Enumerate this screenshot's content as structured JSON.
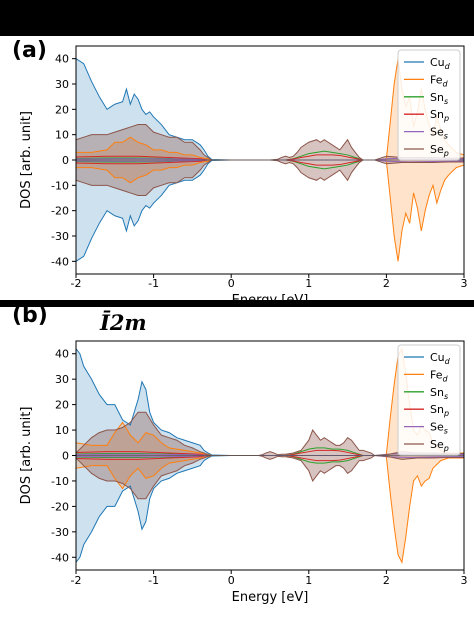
{
  "space_group_label": "Ī2m",
  "chart_data": [
    {
      "panel": "(a)",
      "type": "area",
      "xlabel": "Energy [eV]",
      "ylabel": "DOS [arb. unit]",
      "xlim": [
        -2,
        3
      ],
      "ylim": [
        -45,
        45
      ],
      "xticks": [
        "-2",
        "-1",
        "0",
        "1",
        "2",
        "3"
      ],
      "yticks": [
        "-40",
        "-30",
        "-20",
        "-10",
        "0",
        "10",
        "20",
        "30",
        "40"
      ],
      "legend_position": "top-right",
      "series": [
        {
          "name": "Cu",
          "sub": "d",
          "color": "#1f77b4",
          "x": [
            -2.0,
            -1.9,
            -1.8,
            -1.7,
            -1.6,
            -1.5,
            -1.4,
            -1.35,
            -1.3,
            -1.25,
            -1.2,
            -1.15,
            -1.1,
            -1.05,
            -1.0,
            -0.9,
            -0.8,
            -0.7,
            -0.6,
            -0.5,
            -0.4,
            -0.35,
            -0.3,
            -0.25,
            0.0
          ],
          "y": [
            40,
            38,
            31,
            25,
            20,
            22,
            23,
            28,
            22,
            26,
            24,
            20,
            18,
            19,
            17,
            14,
            10,
            9,
            8,
            8,
            6,
            4,
            1.5,
            0.2,
            0
          ]
        },
        {
          "name": "Fe",
          "sub": "d",
          "color": "#ff7f0e",
          "x": [
            -2.0,
            -1.8,
            -1.6,
            -1.5,
            -1.4,
            -1.3,
            -1.2,
            -1.1,
            -1.0,
            -0.9,
            -0.8,
            -0.7,
            -0.6,
            -0.5,
            -0.4,
            -0.3,
            -0.25,
            1.9,
            2.0,
            2.05,
            2.1,
            2.15,
            2.2,
            2.25,
            2.3,
            2.35,
            2.4,
            2.45,
            2.5,
            2.55,
            2.6,
            2.65,
            2.7,
            2.75,
            2.8,
            2.9,
            3.0
          ],
          "y": [
            3,
            3,
            4,
            7,
            7,
            9,
            7,
            6,
            4,
            4,
            3,
            3,
            2,
            2,
            1,
            0.5,
            0,
            0,
            0.5,
            15,
            30,
            40,
            28,
            21,
            25,
            13,
            19,
            28,
            20,
            14,
            10,
            17,
            12,
            8,
            6,
            3,
            2
          ]
        },
        {
          "name": "Sn",
          "sub": "s",
          "color": "#2ca02c",
          "x": [
            -2.0,
            -1.6,
            -1.2,
            -0.8,
            -0.4,
            -0.3,
            0.7,
            0.8,
            0.9,
            1.0,
            1.1,
            1.2,
            1.3,
            1.4,
            1.5,
            1.6,
            1.7
          ],
          "y": [
            0.6,
            0.8,
            0.8,
            0.6,
            0.3,
            0,
            0,
            0.5,
            1.5,
            2.5,
            3,
            3.5,
            3,
            2.5,
            2,
            1,
            0
          ]
        },
        {
          "name": "Sn",
          "sub": "p",
          "color": "#d62728",
          "x": [
            -2.0,
            -1.6,
            -1.2,
            -0.8,
            -0.4,
            -0.3,
            0.7,
            0.8,
            0.9,
            1.0,
            1.1,
            1.2,
            1.3,
            1.4,
            1.5,
            1.6,
            1.7
          ],
          "y": [
            1.2,
            1.5,
            1.5,
            1.0,
            0.5,
            0,
            0,
            0.4,
            1.0,
            1.5,
            2.0,
            2.0,
            2.0,
            1.8,
            1.2,
            0.6,
            0
          ]
        },
        {
          "name": "Se",
          "sub": "s",
          "color": "#9467bd",
          "x": [
            -2.0,
            -1.5,
            -1.0,
            -0.5,
            -0.3,
            1.85,
            2.0,
            2.3,
            2.6,
            3.0
          ],
          "y": [
            0.4,
            0.5,
            0.5,
            0.3,
            0,
            0,
            0.5,
            0.8,
            0.6,
            0.4
          ]
        },
        {
          "name": "Se",
          "sub": "p",
          "color": "#8c564b",
          "x": [
            -2.0,
            -1.9,
            -1.8,
            -1.7,
            -1.6,
            -1.5,
            -1.4,
            -1.3,
            -1.2,
            -1.1,
            -1.0,
            -0.9,
            -0.8,
            -0.7,
            -0.6,
            -0.5,
            -0.4,
            -0.35,
            -0.3,
            -0.25,
            0.5,
            0.6,
            0.65,
            0.7,
            0.75,
            0.8,
            0.85,
            0.9,
            1.0,
            1.1,
            1.15,
            1.2,
            1.25,
            1.3,
            1.35,
            1.4,
            1.45,
            1.5,
            1.55,
            1.6,
            1.65,
            1.7,
            1.85,
            1.9,
            2.0,
            2.2,
            2.4,
            2.6,
            2.8,
            3.0
          ],
          "y": [
            8,
            9,
            10,
            10,
            10,
            11,
            12,
            13,
            14,
            14,
            11,
            10,
            9,
            9,
            7,
            7,
            4,
            2,
            1,
            0,
            0,
            0.3,
            1,
            1.5,
            1,
            1.5,
            3,
            5,
            7,
            8,
            7,
            8,
            7,
            6,
            5,
            4,
            6,
            8,
            5,
            3,
            1,
            0,
            0,
            0.5,
            1.5,
            1,
            1,
            1,
            0.8,
            0.8
          ]
        }
      ]
    },
    {
      "panel": "(b)",
      "type": "area",
      "xlabel": "Energy [eV]",
      "ylabel": "DOS [arb. unit]",
      "xlim": [
        -2,
        3
      ],
      "ylim": [
        -45,
        45
      ],
      "xticks": [
        "-2",
        "-1",
        "0",
        "1",
        "2",
        "3"
      ],
      "yticks": [
        "-40",
        "-30",
        "-20",
        "-10",
        "0",
        "10",
        "20",
        "30",
        "40"
      ],
      "legend_position": "top-right",
      "series": [
        {
          "name": "Cu",
          "sub": "d",
          "color": "#1f77b4",
          "x": [
            -2.0,
            -1.95,
            -1.9,
            -1.8,
            -1.7,
            -1.6,
            -1.5,
            -1.4,
            -1.3,
            -1.2,
            -1.15,
            -1.1,
            -1.05,
            -1.0,
            -0.9,
            -0.8,
            -0.7,
            -0.6,
            -0.5,
            -0.4,
            -0.35,
            -0.3,
            -0.25,
            0.0
          ],
          "y": [
            42,
            40,
            35,
            30,
            24,
            20,
            20,
            14,
            12,
            22,
            29,
            26,
            17,
            13,
            10,
            9,
            7,
            6,
            5,
            4,
            2,
            1,
            0.2,
            0
          ]
        },
        {
          "name": "Fe",
          "sub": "d",
          "color": "#ff7f0e",
          "x": [
            -2.0,
            -1.8,
            -1.6,
            -1.5,
            -1.4,
            -1.3,
            -1.2,
            -1.1,
            -1.0,
            -0.9,
            -0.8,
            -0.6,
            -0.4,
            -0.3,
            -0.25,
            1.9,
            2.0,
            2.05,
            2.1,
            2.15,
            2.2,
            2.25,
            2.3,
            2.35,
            2.4,
            2.45,
            2.5,
            2.55,
            2.6,
            2.7,
            2.8,
            2.9,
            3.0
          ],
          "y": [
            5,
            4,
            4,
            9,
            13,
            8,
            5,
            9,
            8,
            5,
            3,
            2,
            1,
            0.5,
            0,
            0,
            0.5,
            15,
            28,
            39,
            42,
            32,
            20,
            10,
            8,
            12,
            10,
            9,
            5,
            2,
            1,
            1,
            1
          ]
        },
        {
          "name": "Sn",
          "sub": "s",
          "color": "#2ca02c",
          "x": [
            -2.0,
            -1.6,
            -1.2,
            -0.8,
            -0.4,
            -0.3,
            0.7,
            0.8,
            0.9,
            1.0,
            1.1,
            1.2,
            1.3,
            1.4,
            1.5,
            1.6,
            1.7
          ],
          "y": [
            0.6,
            0.8,
            0.8,
            0.6,
            0.3,
            0,
            0,
            0.5,
            1.5,
            2.5,
            3,
            3,
            2.5,
            2.5,
            2,
            1,
            0
          ]
        },
        {
          "name": "Sn",
          "sub": "p",
          "color": "#d62728",
          "x": [
            -2.0,
            -1.6,
            -1.2,
            -0.8,
            -0.4,
            -0.3,
            0.7,
            0.8,
            0.9,
            1.0,
            1.1,
            1.2,
            1.3,
            1.4,
            1.5,
            1.6,
            1.7
          ],
          "y": [
            1.2,
            1.5,
            1.5,
            1.0,
            0.5,
            0,
            0,
            0.4,
            1.0,
            1.5,
            2.0,
            2.0,
            2.0,
            1.8,
            1.2,
            0.6,
            0
          ]
        },
        {
          "name": "Se",
          "sub": "s",
          "color": "#9467bd",
          "x": [
            -2.0,
            -1.5,
            -1.0,
            -0.5,
            -0.3,
            1.85,
            2.0,
            2.3,
            2.6,
            3.0
          ],
          "y": [
            0.4,
            0.5,
            0.5,
            0.3,
            0,
            0,
            0.5,
            0.8,
            0.6,
            0.4
          ]
        },
        {
          "name": "Se",
          "sub": "p",
          "color": "#8c564b",
          "x": [
            -2.0,
            -1.9,
            -1.8,
            -1.7,
            -1.6,
            -1.5,
            -1.4,
            -1.3,
            -1.2,
            -1.1,
            -1.0,
            -0.9,
            -0.8,
            -0.7,
            -0.6,
            -0.5,
            -0.4,
            -0.35,
            -0.3,
            -0.25,
            0.35,
            0.4,
            0.45,
            0.5,
            0.55,
            0.6,
            0.65,
            0.7,
            0.8,
            0.9,
            1.0,
            1.05,
            1.1,
            1.15,
            1.2,
            1.25,
            1.3,
            1.35,
            1.4,
            1.45,
            1.5,
            1.55,
            1.6,
            1.65,
            1.7,
            1.75,
            1.8,
            1.85,
            2.0,
            2.2,
            2.4,
            2.6,
            2.8,
            3.0
          ],
          "y": [
            1,
            4,
            7,
            9,
            10,
            10,
            11,
            13,
            17,
            17,
            12,
            8,
            7,
            6,
            4,
            3,
            1.5,
            1,
            0.3,
            0,
            0,
            0.3,
            1,
            1.5,
            1,
            0.3,
            0.5,
            0.5,
            1,
            2,
            6,
            10,
            8,
            6,
            7,
            6,
            5,
            4,
            4,
            5,
            7,
            6,
            4,
            2,
            2,
            1.5,
            1,
            0,
            0.3,
            1.5,
            1,
            1,
            0.8,
            0.8
          ]
        }
      ]
    }
  ]
}
